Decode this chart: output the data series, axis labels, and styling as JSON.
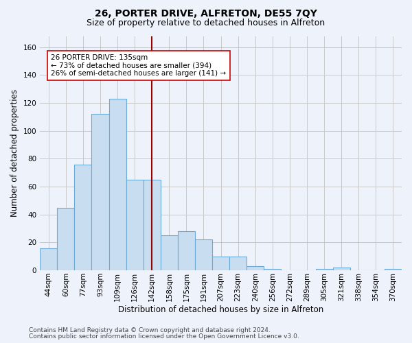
{
  "title": "26, PORTER DRIVE, ALFRETON, DE55 7QY",
  "subtitle": "Size of property relative to detached houses in Alfreton",
  "xlabel": "Distribution of detached houses by size in Alfreton",
  "ylabel": "Number of detached properties",
  "categories": [
    "44sqm",
    "60sqm",
    "77sqm",
    "93sqm",
    "109sqm",
    "126sqm",
    "142sqm",
    "158sqm",
    "175sqm",
    "191sqm",
    "207sqm",
    "223sqm",
    "240sqm",
    "256sqm",
    "272sqm",
    "289sqm",
    "305sqm",
    "321sqm",
    "338sqm",
    "354sqm",
    "370sqm"
  ],
  "values": [
    16,
    45,
    76,
    112,
    123,
    65,
    65,
    25,
    28,
    22,
    10,
    10,
    3,
    1,
    0,
    0,
    1,
    2,
    0,
    0,
    1
  ],
  "bar_color": "#c8ddf0",
  "bar_edge_color": "#6aaad4",
  "reference_line_x": 6.0,
  "reference_line_color": "#990000",
  "annotation_text": "26 PORTER DRIVE: 135sqm\n← 73% of detached houses are smaller (394)\n26% of semi-detached houses are larger (141) →",
  "annotation_box_color": "#ffffff",
  "annotation_box_edge_color": "#cc0000",
  "ylim": [
    0,
    168
  ],
  "yticks": [
    0,
    20,
    40,
    60,
    80,
    100,
    120,
    140,
    160
  ],
  "grid_color": "#c8c8c8",
  "background_color": "#eef2fa",
  "footer_line1": "Contains HM Land Registry data © Crown copyright and database right 2024.",
  "footer_line2": "Contains public sector information licensed under the Open Government Licence v3.0.",
  "title_fontsize": 10,
  "subtitle_fontsize": 9,
  "xlabel_fontsize": 8.5,
  "ylabel_fontsize": 8.5,
  "tick_fontsize": 7.5,
  "annotation_fontsize": 7.5,
  "footer_fontsize": 6.5
}
